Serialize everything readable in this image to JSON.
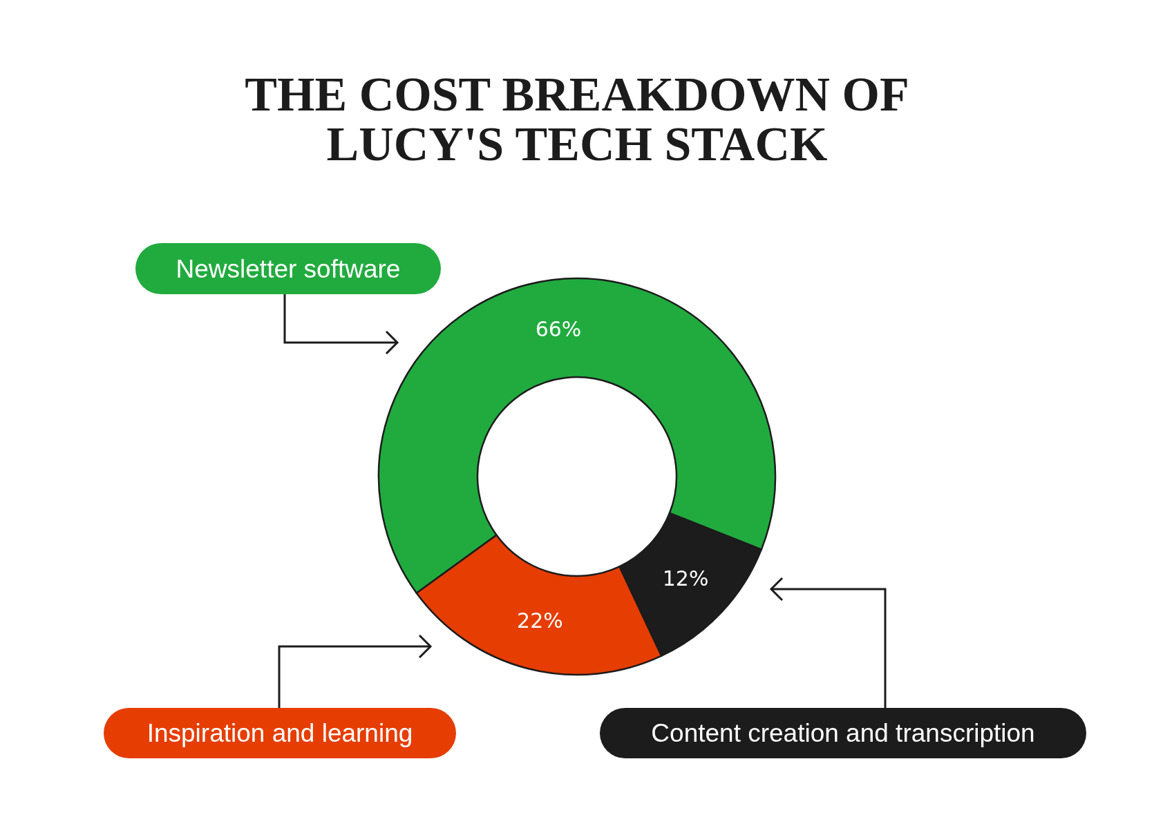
{
  "chart_data": {
    "type": "donut",
    "title": "THE COST BREAKDOWN OF LUCY'S TECH STACK",
    "categories": [
      "Newsletter software",
      "Content creation and transcription",
      "Inspiration and learning"
    ],
    "values": [
      66,
      12,
      22
    ],
    "colors": [
      "#21ab3f",
      "#1c1c1c",
      "#e63d02"
    ],
    "value_labels": [
      "66%",
      "12%",
      "22%"
    ]
  }
}
